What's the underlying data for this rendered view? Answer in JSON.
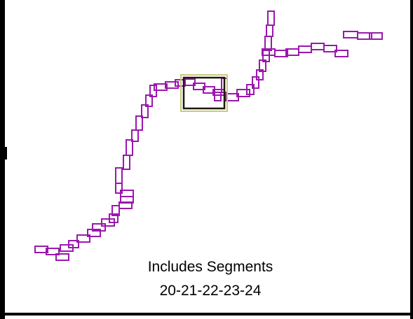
{
  "caption": {
    "line1": "Includes Segments",
    "line2": "20-21-22-23-24"
  },
  "colors": {
    "segment_stroke": "#9a18ad",
    "highlight_inner": "#1c1a06",
    "highlight_outer": "#c9c982",
    "frame": "#000000",
    "background": "#ffffff"
  }
}
